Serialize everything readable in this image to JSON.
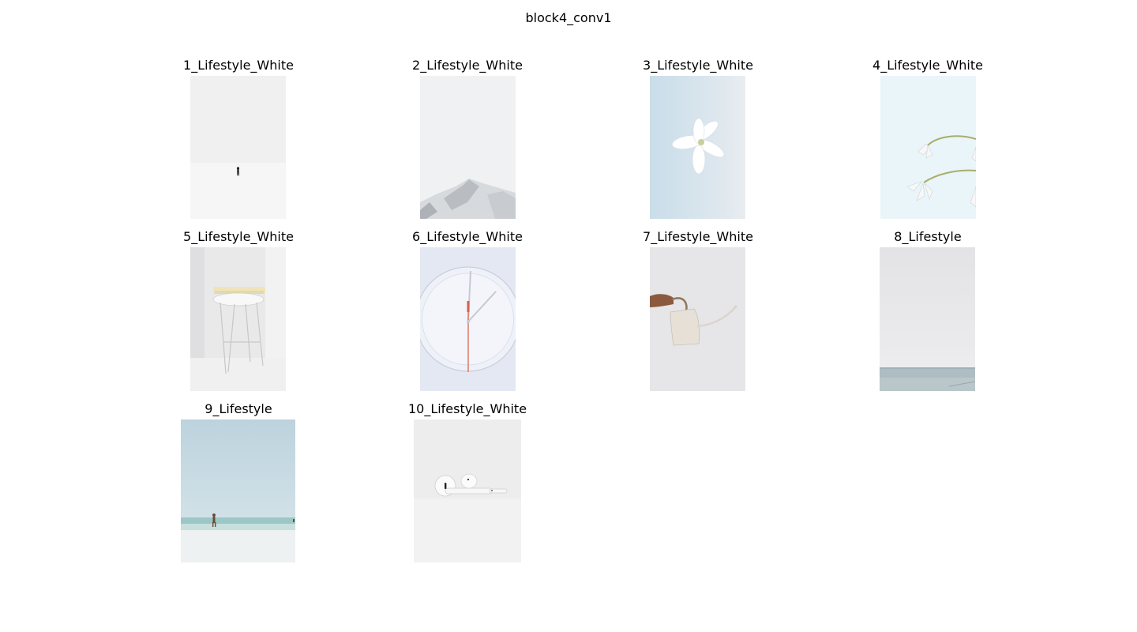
{
  "figure": {
    "title": "block4_conv1"
  },
  "panels": [
    {
      "title": "1_Lifestyle_White",
      "subject": "person walking in white snowfield"
    },
    {
      "title": "2_Lifestyle_White",
      "subject": "snowy mountain peak under white sky"
    },
    {
      "title": "3_Lifestyle_White",
      "subject": "white lily on pale blue background"
    },
    {
      "title": "4_Lifestyle_White",
      "subject": "white flowers on pale blue background"
    },
    {
      "title": "5_Lifestyle_White",
      "subject": "white stool with books"
    },
    {
      "title": "6_Lifestyle_White",
      "subject": "white wall clock"
    },
    {
      "title": "7_Lifestyle_White",
      "subject": "hand holding white watering can"
    },
    {
      "title": "8_Lifestyle",
      "subject": "overcast sky above sea"
    },
    {
      "title": "9_Lifestyle",
      "subject": "person walking on white beach"
    },
    {
      "title": "10_Lifestyle_White",
      "subject": "white earbuds on white surface"
    }
  ]
}
